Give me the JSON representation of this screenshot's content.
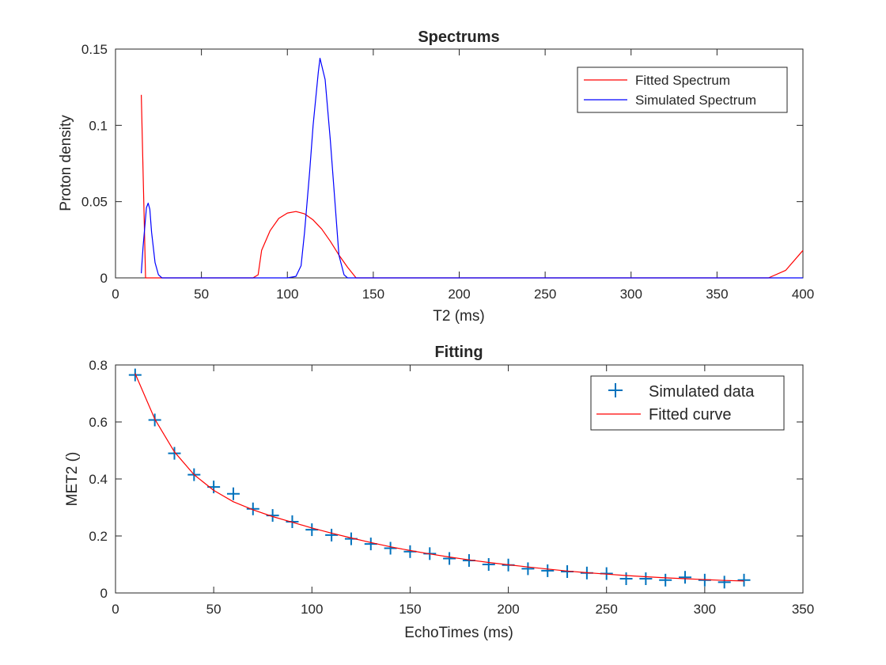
{
  "chart_data": [
    {
      "type": "line",
      "title": "Spectrums",
      "xlabel": "T2 (ms)",
      "ylabel": "Proton density",
      "xlim": [
        0,
        400
      ],
      "ylim": [
        0,
        0.15
      ],
      "xticks": [
        0,
        50,
        100,
        150,
        200,
        250,
        300,
        350,
        400
      ],
      "yticks": [
        0,
        0.05,
        0.1,
        0.15
      ],
      "ytick_labels": [
        "0",
        "0.05",
        "0.1",
        "0.15"
      ],
      "grid": false,
      "legend_position": "top-right",
      "series": [
        {
          "name": "Fitted Spectrum",
          "color": "#ff0000",
          "x": [
            15,
            17.5,
            18,
            80,
            83,
            85,
            90,
            95,
            100,
            105,
            110,
            115,
            120,
            125,
            130,
            135,
            140,
            380,
            390,
            400
          ],
          "y": [
            0.12,
            0.0,
            0.0,
            0.0,
            0.002,
            0.018,
            0.031,
            0.039,
            0.0425,
            0.0435,
            0.042,
            0.038,
            0.032,
            0.024,
            0.015,
            0.007,
            0.0,
            0.0,
            0.005,
            0.018
          ]
        },
        {
          "name": "Simulated Spectrum",
          "color": "#0000ff",
          "x": [
            15,
            16,
            18,
            19,
            20,
            21,
            23,
            25,
            27,
            30,
            100,
            105,
            108,
            110,
            113,
            115,
            118,
            119,
            122,
            125,
            128,
            130,
            133,
            135,
            400
          ],
          "y": [
            0.003,
            0.02,
            0.046,
            0.049,
            0.045,
            0.03,
            0.01,
            0.002,
            0.0,
            0.0,
            0.0,
            0.001,
            0.008,
            0.03,
            0.07,
            0.1,
            0.135,
            0.144,
            0.13,
            0.09,
            0.045,
            0.015,
            0.002,
            0.0,
            0.0
          ]
        }
      ]
    },
    {
      "type": "scatter",
      "title": "Fitting",
      "xlabel": "EchoTimes (ms)",
      "ylabel": "MET2 ()",
      "xlim": [
        0,
        350
      ],
      "ylim": [
        0,
        0.8
      ],
      "xticks": [
        0,
        50,
        100,
        150,
        200,
        250,
        300,
        350
      ],
      "yticks": [
        0,
        0.2,
        0.4,
        0.6,
        0.8
      ],
      "ytick_labels": [
        "0",
        "0.2",
        "0.4",
        "0.6",
        "0.8"
      ],
      "grid": false,
      "legend_position": "top-right",
      "series": [
        {
          "name": "Simulated data",
          "color": "#0072bd",
          "marker": "+",
          "x": [
            10,
            20,
            30,
            40,
            50,
            60,
            70,
            80,
            90,
            100,
            110,
            120,
            130,
            140,
            150,
            160,
            170,
            180,
            190,
            200,
            210,
            220,
            230,
            240,
            250,
            260,
            270,
            280,
            290,
            300,
            310,
            320
          ],
          "y": [
            0.765,
            0.607,
            0.49,
            0.415,
            0.372,
            0.348,
            0.295,
            0.272,
            0.25,
            0.222,
            0.203,
            0.19,
            0.172,
            0.157,
            0.145,
            0.138,
            0.121,
            0.114,
            0.1,
            0.098,
            0.085,
            0.078,
            0.075,
            0.07,
            0.068,
            0.05,
            0.05,
            0.045,
            0.055,
            0.045,
            0.038,
            0.045
          ]
        },
        {
          "name": "Fitted curve",
          "color": "#ff0000",
          "x": [
            10,
            20,
            30,
            40,
            50,
            60,
            70,
            80,
            90,
            100,
            110,
            120,
            130,
            140,
            150,
            160,
            170,
            180,
            190,
            200,
            210,
            220,
            230,
            240,
            250,
            260,
            270,
            280,
            290,
            300,
            310,
            320
          ],
          "y": [
            0.77,
            0.61,
            0.495,
            0.415,
            0.36,
            0.32,
            0.292,
            0.268,
            0.248,
            0.228,
            0.21,
            0.193,
            0.177,
            0.162,
            0.149,
            0.137,
            0.126,
            0.116,
            0.107,
            0.099,
            0.091,
            0.084,
            0.077,
            0.071,
            0.066,
            0.061,
            0.057,
            0.053,
            0.05,
            0.047,
            0.044,
            0.042
          ]
        }
      ]
    }
  ]
}
